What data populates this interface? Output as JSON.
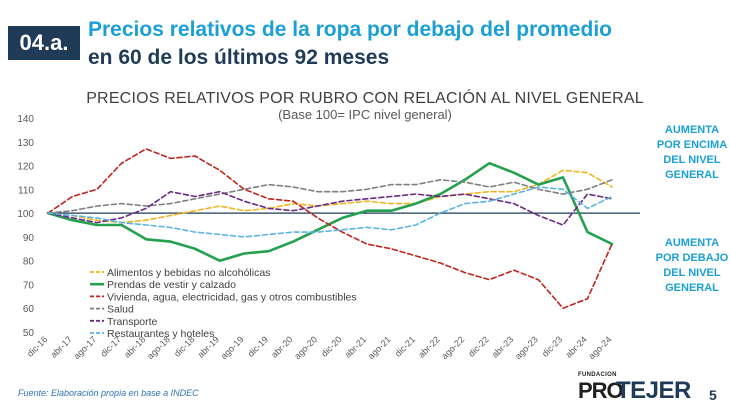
{
  "header": {
    "badge": "04.a.",
    "title_line1": "Precios relativos de la ropa por debajo del promedio",
    "title_line2": "en 60 de los últimos 92 meses"
  },
  "chart_data": {
    "type": "line",
    "title": "PRECIOS RELATIVOS POR RUBRO CON RELACIÓN AL NIVEL GENERAL",
    "subtitle": "(Base 100= IPC nivel general)",
    "ylim": [
      50,
      140
    ],
    "yticks": [
      50,
      60,
      70,
      80,
      90,
      100,
      110,
      120,
      130,
      140
    ],
    "reference_line": 100,
    "grid": false,
    "legend_position": "bottom-left",
    "x_tick_labels": [
      "dic-16",
      "abr-17",
      "ago-17",
      "dic-17",
      "abr-18",
      "ago-18",
      "dic-18",
      "abr-19",
      "ago-19",
      "dic-19",
      "abr-20",
      "ago-20",
      "dic-20",
      "abr-21",
      "ago-21",
      "dic-21",
      "abr-22",
      "ago-22",
      "dic-22",
      "abr-23",
      "ago-23",
      "dic-23",
      "abr-24",
      "ago-24"
    ],
    "x": [
      "dic-16",
      "abr-17",
      "ago-17",
      "dic-17",
      "abr-18",
      "ago-18",
      "dic-18",
      "abr-19",
      "ago-19",
      "dic-19",
      "abr-20",
      "ago-20",
      "dic-20",
      "abr-21",
      "ago-21",
      "dic-21",
      "abr-22",
      "ago-22",
      "dic-22",
      "abr-23",
      "ago-23",
      "dic-23",
      "abr-24",
      "ago-24"
    ],
    "series": [
      {
        "name": "Alimentos y bebidas no alcohólicas",
        "color": "#f2b41d",
        "dash": "dashed",
        "width": 1.6,
        "values": [
          100,
          99,
          97,
          96,
          97,
          99,
          101,
          103,
          101,
          102,
          104,
          103,
          104,
          105,
          104,
          104,
          107,
          108,
          109,
          109,
          112,
          118,
          117,
          111
        ]
      },
      {
        "name": "Prendas de vestir y calzado",
        "color": "#24a14f",
        "dash": "solid",
        "width": 2.6,
        "values": [
          100,
          97,
          95,
          95,
          89,
          88,
          85,
          80,
          83,
          84,
          88,
          93,
          98,
          101,
          101,
          104,
          108,
          114,
          121,
          117,
          112,
          115,
          92,
          87
        ]
      },
      {
        "name": "Vivienda, agua, electricidad, gas y otros combustibles",
        "color": "#c0231c",
        "dash": "dashed",
        "width": 1.6,
        "values": [
          100,
          107,
          110,
          121,
          127,
          123,
          124,
          118,
          110,
          106,
          105,
          98,
          92,
          87,
          85,
          82,
          79,
          75,
          72,
          76,
          72,
          60,
          64,
          87
        ]
      },
      {
        "name": "Salud",
        "color": "#7f7f7f",
        "dash": "dashed",
        "width": 1.6,
        "values": [
          100,
          101,
          103,
          104,
          103,
          104,
          106,
          108,
          110,
          112,
          111,
          109,
          109,
          110,
          112,
          112,
          114,
          113,
          111,
          113,
          110,
          108,
          110,
          114
        ]
      },
      {
        "name": "Transporte",
        "color": "#6a2a83",
        "dash": "dashed",
        "width": 1.6,
        "values": [
          100,
          98,
          96,
          98,
          102,
          109,
          107,
          109,
          105,
          102,
          101,
          103,
          105,
          106,
          107,
          108,
          107,
          108,
          106,
          104,
          99,
          95,
          108,
          106
        ]
      },
      {
        "name": "Restaurantes y hoteles",
        "color": "#5bb4e5",
        "dash": "dashed",
        "width": 1.6,
        "values": [
          100,
          99,
          98,
          96,
          95,
          94,
          92,
          91,
          90,
          91,
          92,
          92,
          93,
          94,
          93,
          95,
          100,
          104,
          105,
          108,
          111,
          110,
          102,
          107
        ]
      }
    ]
  },
  "notes": {
    "above": "AUMENTA POR ENCIMA DEL NIVEL GENERAL",
    "below": "AUMENTA POR DEBAJO DEL NIVEL GENERAL"
  },
  "footer": {
    "source": "Fuente: Elaboración propia en base a INDEC",
    "logo_small": "FUNDACION",
    "logo_pro": "PRO",
    "logo_tejer": "TEJER",
    "page_number": "5"
  }
}
